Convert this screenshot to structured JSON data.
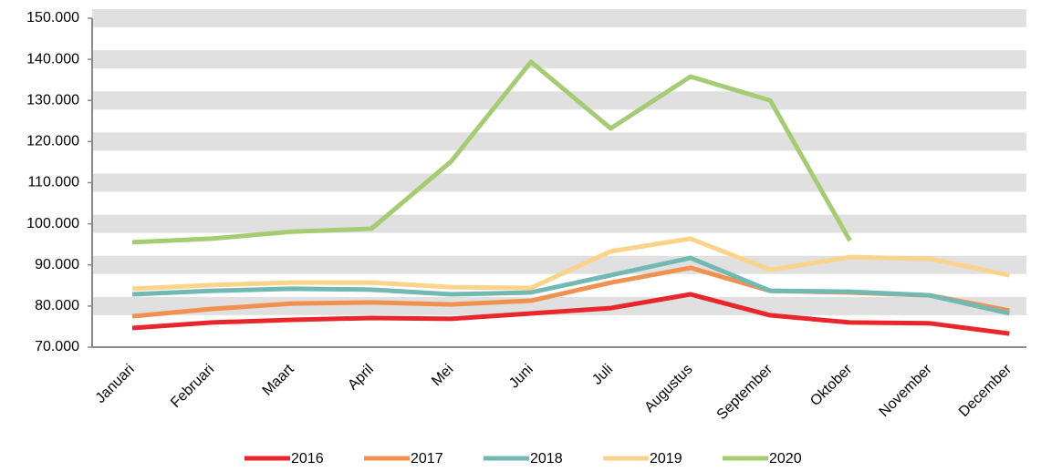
{
  "chart_data": {
    "type": "line",
    "categories": [
      "Januari",
      "Februari",
      "Maart",
      "April",
      "Mei",
      "Juni",
      "Juli",
      "Augustus",
      "September",
      "Oktober",
      "November",
      "December"
    ],
    "series": [
      {
        "name": "2016",
        "color": "#e8262b",
        "values": [
          74650,
          76000,
          76650,
          77100,
          76900,
          78200,
          79500,
          82850,
          77750,
          76000,
          75800,
          73300
        ]
      },
      {
        "name": "2017",
        "color": "#f0914f",
        "values": [
          77500,
          79300,
          80600,
          80900,
          80400,
          81300,
          85700,
          89300,
          83700,
          83300,
          82600,
          78900
        ]
      },
      {
        "name": "2018",
        "color": "#72b9b4",
        "values": [
          82850,
          83700,
          84200,
          84000,
          82850,
          83300,
          87500,
          91700,
          83700,
          83500,
          82600,
          78200
        ]
      },
      {
        "name": "2019",
        "color": "#fbd38a",
        "values": [
          84200,
          85100,
          85700,
          85700,
          84600,
          84400,
          93300,
          96400,
          88800,
          91900,
          91500,
          87500
        ]
      },
      {
        "name": "2020",
        "color": "#a5cc73",
        "values": [
          95500,
          96400,
          98100,
          98800,
          115200,
          139400,
          123200,
          135800,
          130000,
          95900,
          null,
          null
        ]
      }
    ],
    "ylim": [
      70000,
      150000
    ],
    "yticks": [
      {
        "value": 70000,
        "label": "70.000"
      },
      {
        "value": 80000,
        "label": "80.000"
      },
      {
        "value": 90000,
        "label": "90.000"
      },
      {
        "value": 100000,
        "label": "100.000"
      },
      {
        "value": 110000,
        "label": "110.000"
      },
      {
        "value": 120000,
        "label": "120.000"
      },
      {
        "value": 130000,
        "label": "130.000"
      },
      {
        "value": 140000,
        "label": "140.000"
      },
      {
        "value": 150000,
        "label": "150.000"
      }
    ],
    "grid": true,
    "legend": "bottom"
  }
}
